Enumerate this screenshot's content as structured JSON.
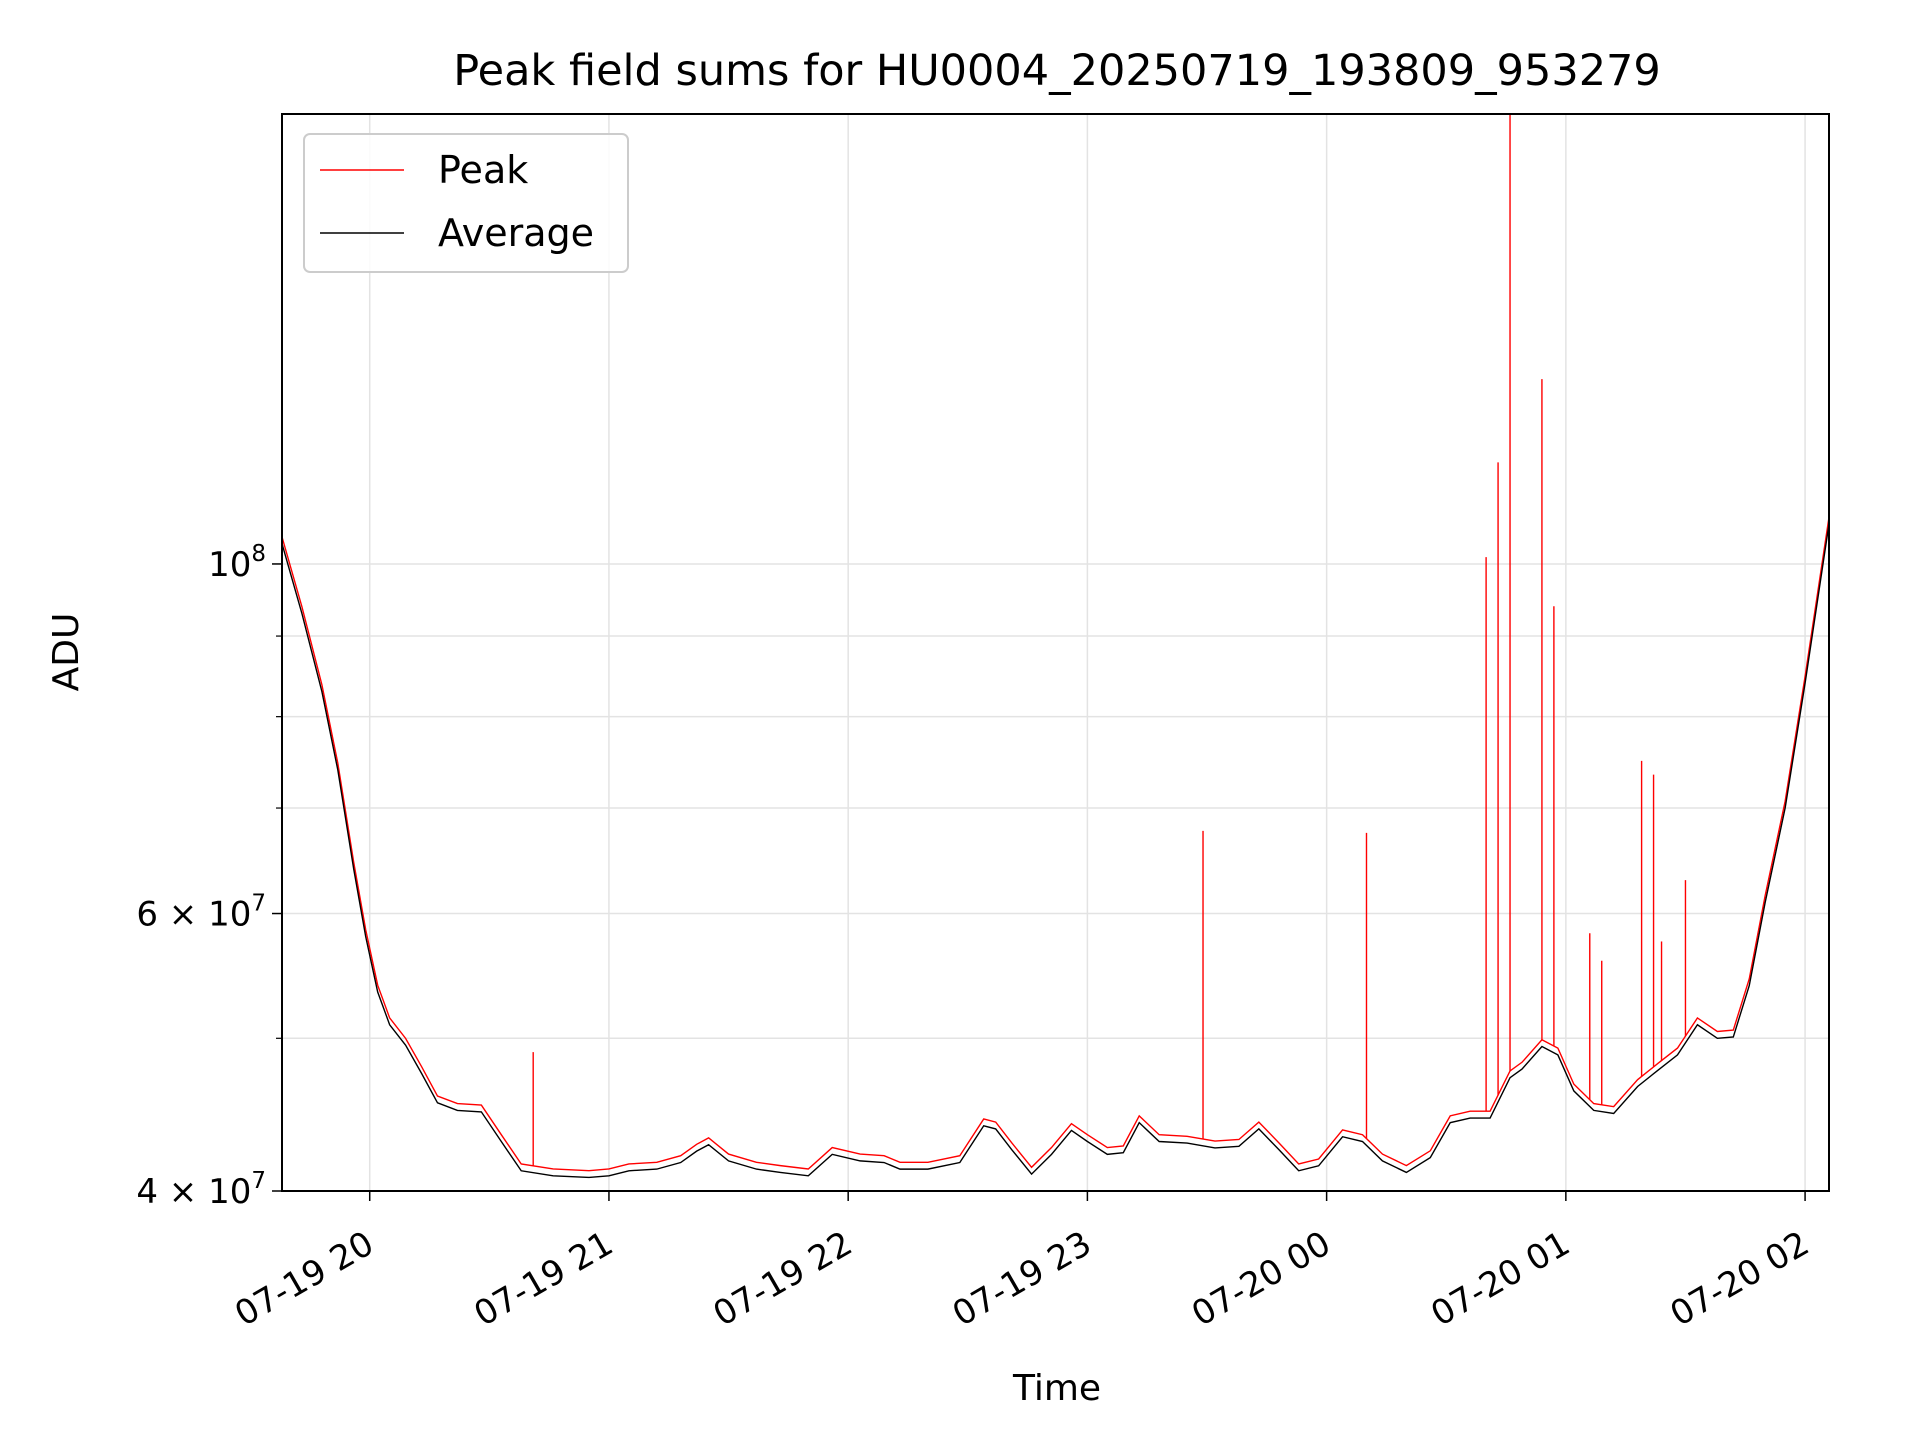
{
  "chart_data": {
    "type": "line",
    "title": "Peak field sums for HU0004_20250719_193809_953279",
    "xlabel": "Time",
    "ylabel": "ADU",
    "yscale": "log",
    "ylim": [
      40000000,
      193000000
    ],
    "xlim": [
      "2025-07-19T19:38",
      "2025-07-20T02:06"
    ],
    "grid": true,
    "legend": "top-left",
    "x_ticks": [
      {
        "t": "2025-07-19T20:00",
        "label": "07-19 20"
      },
      {
        "t": "2025-07-19T21:00",
        "label": "07-19 21"
      },
      {
        "t": "2025-07-19T22:00",
        "label": "07-19 22"
      },
      {
        "t": "2025-07-19T23:00",
        "label": "07-19 23"
      },
      {
        "t": "2025-07-20T00:00",
        "label": "07-20 00"
      },
      {
        "t": "2025-07-20T01:00",
        "label": "07-20 01"
      },
      {
        "t": "2025-07-20T02:00",
        "label": "07-20 02"
      }
    ],
    "y_ticks": [
      {
        "v": 40000000,
        "mant": "4 × 10",
        "exp": "7"
      },
      {
        "v": 60000000,
        "mant": "6 × 10",
        "exp": "7"
      },
      {
        "v": 100000000,
        "mant": "10",
        "exp": "8"
      }
    ],
    "y_minor_ticks": [
      50000000,
      70000000,
      80000000,
      90000000
    ],
    "series": [
      {
        "name": "Average",
        "color": "#000000",
        "points": [
          [
            "2025-07-19T19:38",
            103000000
          ],
          [
            "2025-07-19T19:43",
            93000000
          ],
          [
            "2025-07-19T19:48",
            83000000
          ],
          [
            "2025-07-19T19:52",
            74000000
          ],
          [
            "2025-07-19T19:56",
            64000000
          ],
          [
            "2025-07-19T19:59",
            58000000
          ],
          [
            "2025-07-19T20:02",
            53500000
          ],
          [
            "2025-07-19T20:05",
            51000000
          ],
          [
            "2025-07-19T20:09",
            49500000
          ],
          [
            "2025-07-19T20:13",
            47500000
          ],
          [
            "2025-07-19T20:17",
            45500000
          ],
          [
            "2025-07-19T20:22",
            45000000
          ],
          [
            "2025-07-19T20:28",
            44900000
          ],
          [
            "2025-07-19T20:33",
            43000000
          ],
          [
            "2025-07-19T20:38",
            41200000
          ],
          [
            "2025-07-19T20:46",
            40900000
          ],
          [
            "2025-07-19T20:55",
            40800000
          ],
          [
            "2025-07-19T21:00",
            40900000
          ],
          [
            "2025-07-19T21:05",
            41200000
          ],
          [
            "2025-07-19T21:12",
            41300000
          ],
          [
            "2025-07-19T21:18",
            41700000
          ],
          [
            "2025-07-19T21:22",
            42400000
          ],
          [
            "2025-07-19T21:25",
            42800000
          ],
          [
            "2025-07-19T21:30",
            41800000
          ],
          [
            "2025-07-19T21:37",
            41300000
          ],
          [
            "2025-07-19T21:43",
            41100000
          ],
          [
            "2025-07-19T21:50",
            40900000
          ],
          [
            "2025-07-19T21:56",
            42200000
          ],
          [
            "2025-07-19T22:03",
            41800000
          ],
          [
            "2025-07-19T22:09",
            41700000
          ],
          [
            "2025-07-19T22:13",
            41300000
          ],
          [
            "2025-07-19T22:20",
            41300000
          ],
          [
            "2025-07-19T22:28",
            41700000
          ],
          [
            "2025-07-19T22:34",
            44000000
          ],
          [
            "2025-07-19T22:37",
            43800000
          ],
          [
            "2025-07-19T22:41",
            42500000
          ],
          [
            "2025-07-19T22:46",
            41000000
          ],
          [
            "2025-07-19T22:51",
            42200000
          ],
          [
            "2025-07-19T22:56",
            43700000
          ],
          [
            "2025-07-19T23:00",
            43000000
          ],
          [
            "2025-07-19T23:05",
            42200000
          ],
          [
            "2025-07-19T23:09",
            42300000
          ],
          [
            "2025-07-19T23:13",
            44200000
          ],
          [
            "2025-07-19T23:18",
            43000000
          ],
          [
            "2025-07-19T23:25",
            42900000
          ],
          [
            "2025-07-19T23:32",
            42600000
          ],
          [
            "2025-07-19T23:38",
            42700000
          ],
          [
            "2025-07-19T23:43",
            43800000
          ],
          [
            "2025-07-19T23:48",
            42500000
          ],
          [
            "2025-07-19T23:53",
            41200000
          ],
          [
            "2025-07-19T23:58",
            41500000
          ],
          [
            "2025-07-20T00:04",
            43300000
          ],
          [
            "2025-07-20T00:09",
            43000000
          ],
          [
            "2025-07-20T00:14",
            41800000
          ],
          [
            "2025-07-20T00:20",
            41100000
          ],
          [
            "2025-07-20T00:26",
            42000000
          ],
          [
            "2025-07-20T00:31",
            44200000
          ],
          [
            "2025-07-20T00:36",
            44500000
          ],
          [
            "2025-07-20T00:41",
            44500000
          ],
          [
            "2025-07-20T00:46",
            47200000
          ],
          [
            "2025-07-20T00:49",
            47800000
          ],
          [
            "2025-07-20T00:54",
            49400000
          ],
          [
            "2025-07-20T00:58",
            48800000
          ],
          [
            "2025-07-20T01:02",
            46300000
          ],
          [
            "2025-07-20T01:07",
            45000000
          ],
          [
            "2025-07-20T01:12",
            44800000
          ],
          [
            "2025-07-20T01:18",
            46600000
          ],
          [
            "2025-07-20T01:23",
            47700000
          ],
          [
            "2025-07-20T01:28",
            48800000
          ],
          [
            "2025-07-20T01:33",
            51000000
          ],
          [
            "2025-07-20T01:38",
            50000000
          ],
          [
            "2025-07-20T01:42",
            50100000
          ],
          [
            "2025-07-20T01:46",
            54000000
          ],
          [
            "2025-07-20T01:50",
            61000000
          ],
          [
            "2025-07-20T01:55",
            70000000
          ],
          [
            "2025-07-20T02:00",
            84000000
          ],
          [
            "2025-07-20T02:06",
            106000000
          ]
        ]
      },
      {
        "name": "Peak",
        "color": "#ff0000",
        "spikes": [
          [
            "2025-07-19T20:41",
            49000000
          ],
          [
            "2025-07-19T23:29",
            67700000
          ],
          [
            "2025-07-20T00:10",
            67500000
          ],
          [
            "2025-07-20T00:40",
            101000000
          ],
          [
            "2025-07-20T00:43",
            116000000
          ],
          [
            "2025-07-20T00:46",
            193000000
          ],
          [
            "2025-07-20T00:54",
            131000000
          ],
          [
            "2025-07-20T00:57",
            94000000
          ],
          [
            "2025-07-20T01:06",
            58300000
          ],
          [
            "2025-07-20T01:09",
            56000000
          ],
          [
            "2025-07-20T01:19",
            75000000
          ],
          [
            "2025-07-20T01:22",
            73500000
          ],
          [
            "2025-07-20T01:24",
            57600000
          ],
          [
            "2025-07-20T01:30",
            63000000
          ]
        ]
      }
    ]
  }
}
